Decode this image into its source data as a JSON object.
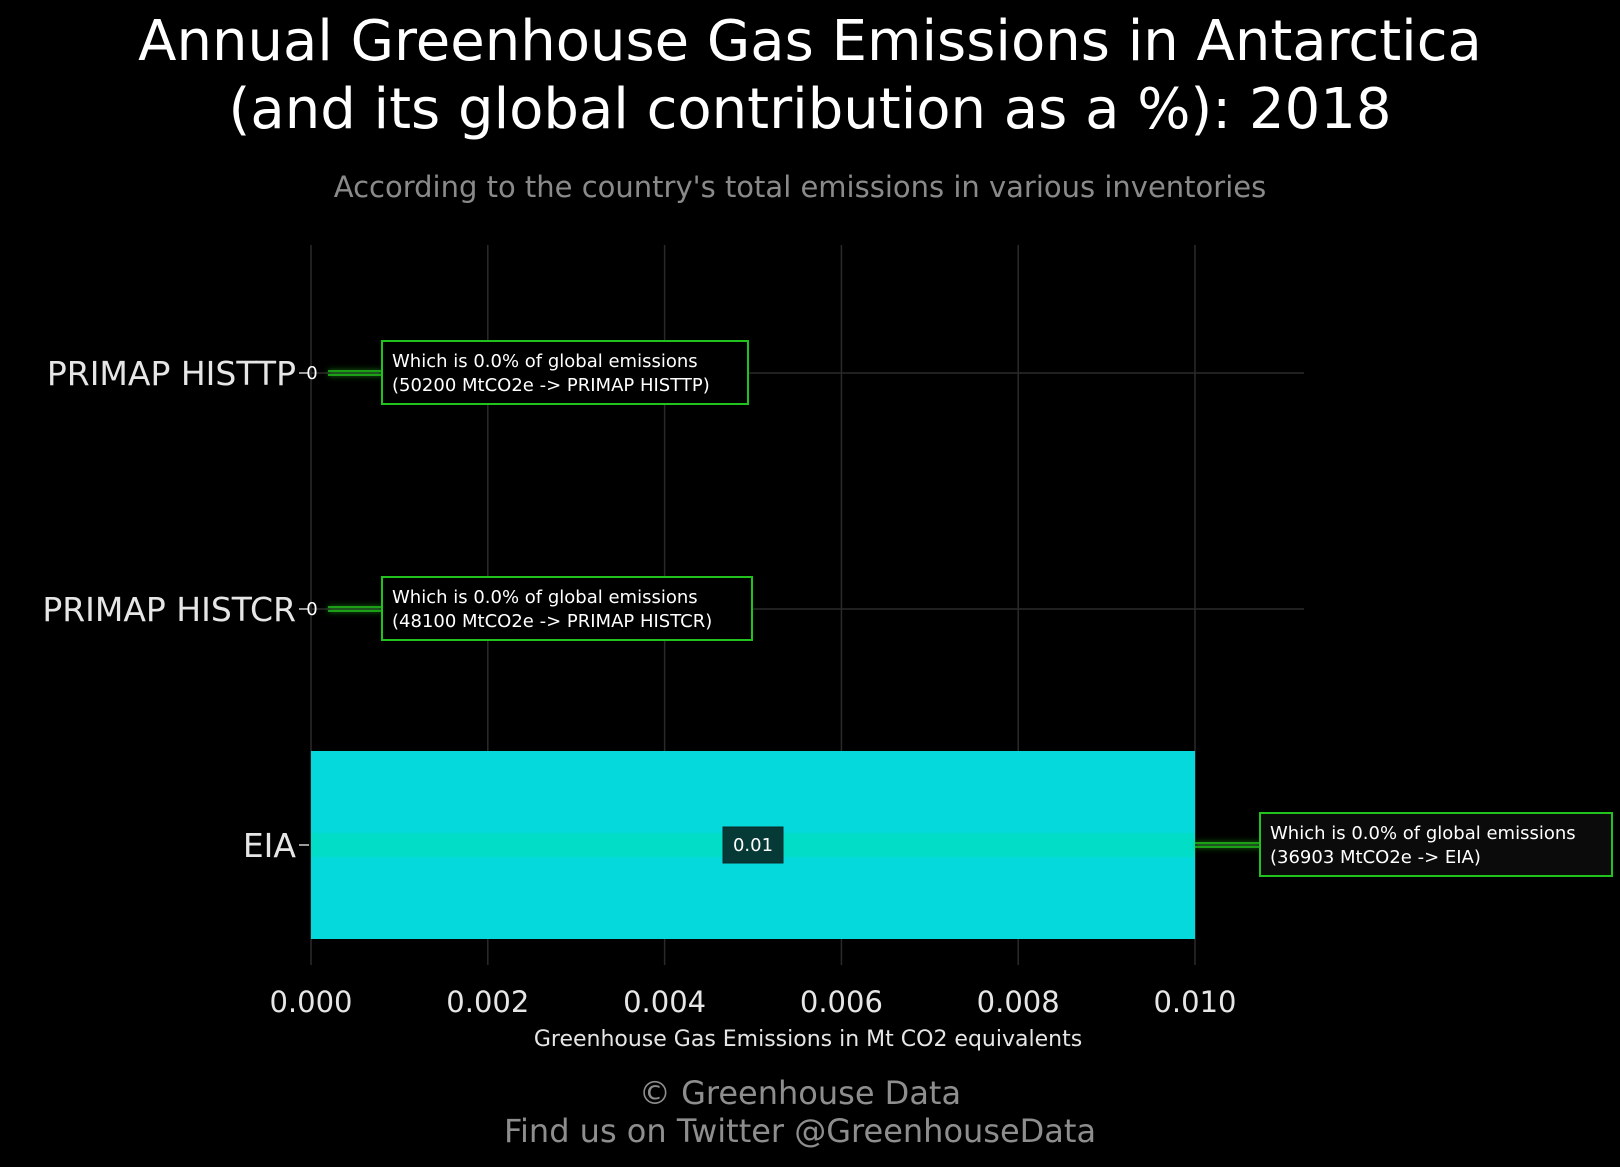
{
  "chart_data": {
    "type": "bar",
    "orientation": "horizontal",
    "title": [
      "Annual Greenhouse Gas Emissions in Antarctica",
      "(and its global contribution as a %): 2018"
    ],
    "subtitle": "According to the country's total emissions in various inventories",
    "xlabel": "Greenhouse Gas Emissions in Mt CO2 equivalents",
    "ylabel": "",
    "xlim": [
      0,
      0.0113
    ],
    "xticks": [
      0,
      0.002,
      0.004,
      0.006,
      0.008,
      0.01
    ],
    "xtick_labels": [
      "0.000",
      "0.002",
      "0.004",
      "0.006",
      "0.008",
      "0.010"
    ],
    "grid": true,
    "categories": [
      "PRIMAP HISTTP",
      "PRIMAP HISTCR",
      "EIA"
    ],
    "values": [
      0,
      0,
      0.01
    ],
    "value_labels": [
      "0",
      "0",
      "0.01"
    ],
    "annotations": [
      [
        "Which is 0.0% of global emissions",
        "(50200 MtCO2e -> PRIMAP HISTTP)"
      ],
      [
        "Which is 0.0% of global emissions",
        "(48100 MtCO2e -> PRIMAP HISTCR)"
      ],
      [
        "Which is 0.0% of global emissions",
        "(36903 MtCO2e -> EIA)"
      ]
    ],
    "colors": {
      "background": "#000000",
      "bar": "#06d9dc",
      "bar_glow": "#00e0b8",
      "annotation_border": "#22c21e",
      "annotation_fill": "#0b0b0b",
      "connector": "#22c21e",
      "grid": "#2a2a2a"
    }
  },
  "footer": {
    "line1": "© Greenhouse Data",
    "line2": "Find us on Twitter @GreenhouseData"
  }
}
